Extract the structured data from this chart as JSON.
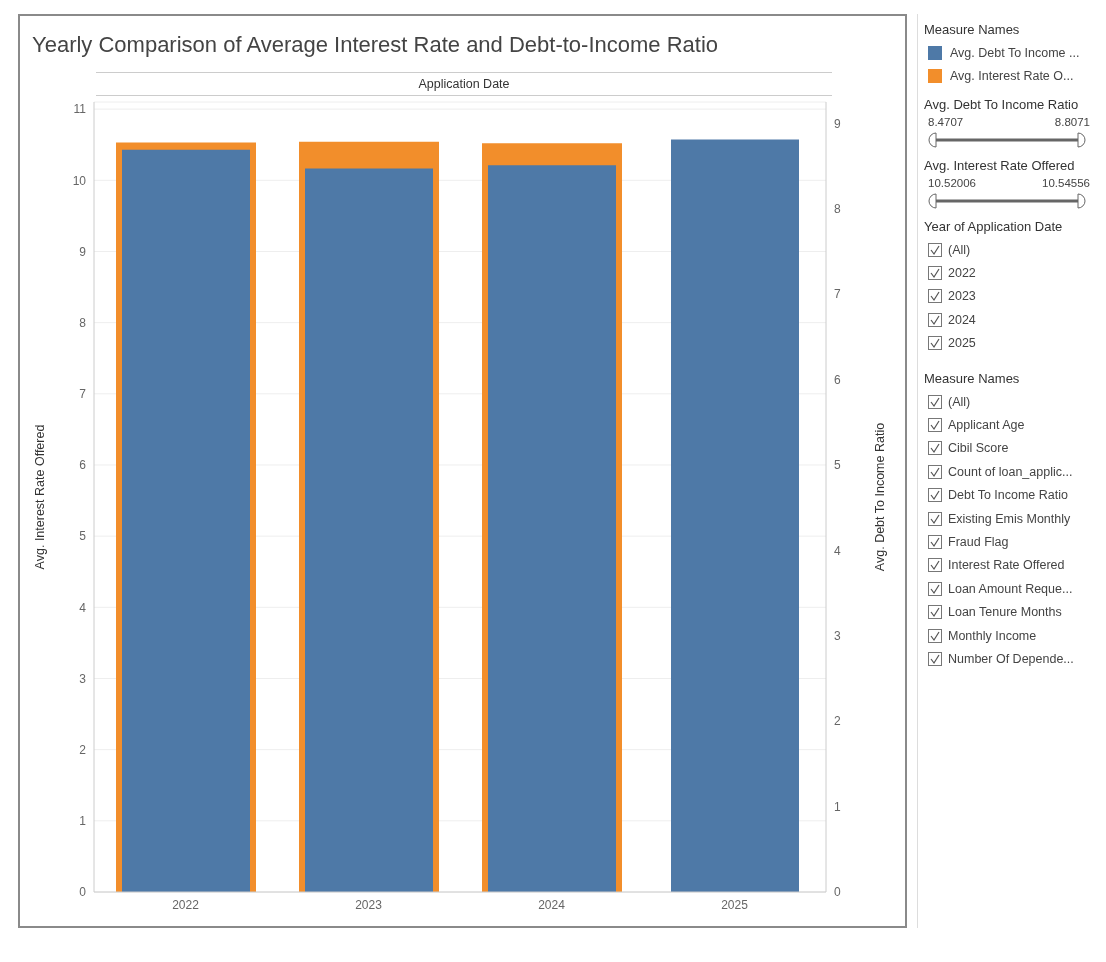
{
  "chart_data": {
    "type": "bar",
    "title": "Yearly Comparison of Average Interest Rate and Debt-to-Income Ratio",
    "xlabel": "Application Date",
    "ylabel": "Avg. Interest Rate Offered",
    "y2label": "Avg. Debt To Income Ratio",
    "legend_title": "Measure Names",
    "categories": [
      "2022",
      "2023",
      "2024",
      "2025"
    ],
    "series": [
      {
        "name": "Avg. Debt To Income ...",
        "color": "#4e79a7",
        "axis": "y2",
        "values": [
          8.69,
          8.47,
          8.51,
          8.81
        ]
      },
      {
        "name": "Avg. Interest Rate O...",
        "color": "#f28e2b",
        "axis": "y",
        "values": [
          10.53,
          10.54,
          10.52,
          null
        ]
      }
    ],
    "ylim": [
      0,
      11.1
    ],
    "yticks": [
      0,
      1,
      2,
      3,
      4,
      5,
      6,
      7,
      8,
      9,
      10,
      11
    ],
    "y2lim": [
      0,
      9.25
    ],
    "y2ticks": [
      0,
      1,
      2,
      3,
      4,
      5,
      6,
      7,
      8,
      9
    ],
    "grid": "y",
    "legend": "top right",
    "annotations": [
      "Avg. Debt To Income Ratio",
      "8.4707",
      "8.8071",
      "Avg. Interest Rate Offered",
      "10.52006",
      "10.54556",
      "Year of Application Date",
      "(All)",
      "2022",
      "2023",
      "2024",
      "2025",
      "Measure Names",
      "(All)",
      "Applicant Age",
      "Cibil Score",
      "Count of loan_applic...",
      "Debt To Income Ratio",
      "Existing Emis Monthly",
      "Fraud Flag",
      "Interest Rate Offered",
      "Loan Amount Reque...",
      "Loan Tenure Months",
      "Monthly Income",
      "Number Of Depende..."
    ]
  }
}
